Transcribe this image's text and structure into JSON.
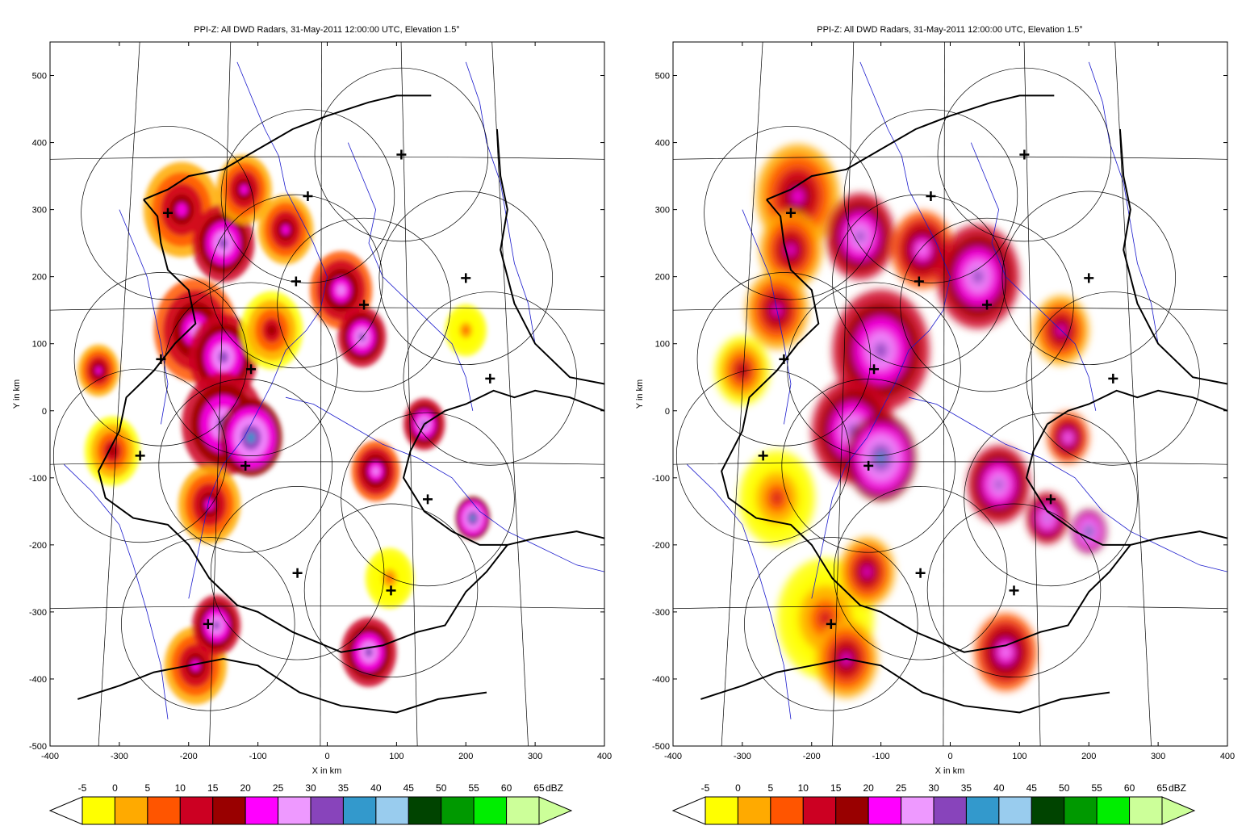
{
  "chart_data": [
    {
      "type": "heatmap",
      "title": "PPI-Z: All DWD Radars, 31-May-2011 12:00:00 UTC, Elevation 1.5°",
      "xlabel": "X in km",
      "ylabel": "Y in km",
      "xlim": [
        -400,
        400
      ],
      "ylim": [
        -500,
        550
      ],
      "xticks": [
        -400,
        -300,
        -200,
        -100,
        0,
        100,
        200,
        300,
        400
      ],
      "yticks": [
        -500,
        -400,
        -300,
        -200,
        -100,
        0,
        100,
        200,
        300,
        400,
        500
      ],
      "xtick_labels": [
        "-400",
        "-300",
        "-200",
        "-100",
        "0",
        "100",
        "200",
        "300",
        "400"
      ],
      "ytick_labels": [
        "-500",
        "-400",
        "-300",
        "-200",
        "-100",
        "0",
        "100",
        "200",
        "300",
        "400",
        "500"
      ],
      "radar_range_km": 125,
      "radar_sites": [
        {
          "x": -230,
          "y": 295
        },
        {
          "x": -28,
          "y": 320
        },
        {
          "x": 107,
          "y": 382
        },
        {
          "x": -45,
          "y": 193
        },
        {
          "x": 53,
          "y": 158
        },
        {
          "x": 200,
          "y": 198
        },
        {
          "x": -240,
          "y": 77
        },
        {
          "x": -110,
          "y": 62
        },
        {
          "x": 235,
          "y": 48
        },
        {
          "x": -270,
          "y": -67
        },
        {
          "x": -118,
          "y": -82
        },
        {
          "x": 145,
          "y": -132
        },
        {
          "x": -43,
          "y": -242
        },
        {
          "x": 92,
          "y": -268
        },
        {
          "x": -172,
          "y": -318
        }
      ],
      "colorbar": {
        "unit": "dBZ",
        "tick_labels": [
          "-5",
          "0",
          "5",
          "10",
          "15",
          "20",
          "25",
          "30",
          "35",
          "40",
          "45",
          "50",
          "55",
          "60",
          "65"
        ],
        "colors": [
          "#ffff00",
          "#ffaa00",
          "#ff5500",
          "#cc0022",
          "#990000",
          "#ff00ff",
          "#ee99ff",
          "#8844bb",
          "#3399cc",
          "#99ccee",
          "#004400",
          "#009900",
          "#00ee00",
          "#ccff99"
        ]
      },
      "rain_cells": [
        {
          "x": -210,
          "y": 300,
          "r": 55,
          "dbz": 15
        },
        {
          "x": -150,
          "y": 250,
          "r": 45,
          "dbz": 25
        },
        {
          "x": -120,
          "y": 330,
          "r": 40,
          "dbz": 15
        },
        {
          "x": -60,
          "y": 270,
          "r": 40,
          "dbz": 15
        },
        {
          "x": -190,
          "y": 120,
          "r": 60,
          "dbz": 20
        },
        {
          "x": -150,
          "y": 80,
          "r": 50,
          "dbz": 25
        },
        {
          "x": -80,
          "y": 120,
          "r": 45,
          "dbz": 10
        },
        {
          "x": 20,
          "y": 180,
          "r": 45,
          "dbz": 20
        },
        {
          "x": 50,
          "y": 110,
          "r": 35,
          "dbz": 25
        },
        {
          "x": -150,
          "y": -20,
          "r": 60,
          "dbz": 25
        },
        {
          "x": -110,
          "y": -40,
          "r": 45,
          "dbz": 30
        },
        {
          "x": -330,
          "y": 60,
          "r": 30,
          "dbz": 15
        },
        {
          "x": -310,
          "y": -60,
          "r": 40,
          "dbz": 10
        },
        {
          "x": -170,
          "y": -140,
          "r": 45,
          "dbz": 15
        },
        {
          "x": -190,
          "y": -380,
          "r": 45,
          "dbz": 15
        },
        {
          "x": -160,
          "y": -320,
          "r": 35,
          "dbz": 25
        },
        {
          "x": 70,
          "y": -90,
          "r": 35,
          "dbz": 20
        },
        {
          "x": 140,
          "y": -20,
          "r": 30,
          "dbz": 25
        },
        {
          "x": 200,
          "y": 120,
          "r": 30,
          "dbz": 0
        },
        {
          "x": 60,
          "y": -360,
          "r": 40,
          "dbz": 25
        },
        {
          "x": 90,
          "y": -250,
          "r": 35,
          "dbz": 0
        },
        {
          "x": 210,
          "y": -160,
          "r": 25,
          "dbz": 30
        }
      ]
    },
    {
      "type": "heatmap",
      "title": "PPI-Z: All DWD Radars, 31-May-2011 12:00:00 UTC, Elevation 1.5°",
      "xlabel": "X in km",
      "ylabel": "Y in km",
      "xlim": [
        -400,
        400
      ],
      "ylim": [
        -500,
        550
      ],
      "xticks": [
        -400,
        -300,
        -200,
        -100,
        0,
        100,
        200,
        300,
        400
      ],
      "yticks": [
        -500,
        -400,
        -300,
        -200,
        -100,
        0,
        100,
        200,
        300,
        400,
        500
      ],
      "xtick_labels": [
        "-400",
        "-300",
        "-200",
        "-100",
        "0",
        "100",
        "200",
        "300",
        "400"
      ],
      "ytick_labels": [
        "-500",
        "-400",
        "-300",
        "-200",
        "-100",
        "0",
        "100",
        "200",
        "300",
        "400",
        "500"
      ],
      "radar_range_km": 125,
      "radar_sites": [
        {
          "x": -230,
          "y": 295
        },
        {
          "x": -28,
          "y": 320
        },
        {
          "x": 107,
          "y": 382
        },
        {
          "x": -45,
          "y": 193
        },
        {
          "x": 53,
          "y": 158
        },
        {
          "x": 200,
          "y": 198
        },
        {
          "x": -240,
          "y": 77
        },
        {
          "x": -110,
          "y": 62
        },
        {
          "x": 235,
          "y": 48
        },
        {
          "x": -270,
          "y": -67
        },
        {
          "x": -118,
          "y": -82
        },
        {
          "x": 145,
          "y": -132
        },
        {
          "x": -43,
          "y": -242
        },
        {
          "x": 92,
          "y": -268
        },
        {
          "x": -172,
          "y": -318
        }
      ],
      "colorbar": {
        "unit": "dBZ",
        "tick_labels": [
          "-5",
          "0",
          "5",
          "10",
          "15",
          "20",
          "25",
          "30",
          "35",
          "40",
          "45",
          "50",
          "55",
          "60",
          "65"
        ],
        "colors": [
          "#ffff00",
          "#ffaa00",
          "#ff5500",
          "#cc0022",
          "#990000",
          "#ff00ff",
          "#ee99ff",
          "#8844bb",
          "#3399cc",
          "#99ccee",
          "#004400",
          "#009900",
          "#00ee00",
          "#ccff99"
        ]
      },
      "rain_cells": [
        {
          "x": -220,
          "y": 320,
          "r": 60,
          "dbz": 15
        },
        {
          "x": -230,
          "y": 240,
          "r": 45,
          "dbz": 15
        },
        {
          "x": -130,
          "y": 260,
          "r": 50,
          "dbz": 25
        },
        {
          "x": -40,
          "y": 240,
          "r": 45,
          "dbz": 20
        },
        {
          "x": 40,
          "y": 200,
          "r": 60,
          "dbz": 25
        },
        {
          "x": -100,
          "y": 90,
          "r": 70,
          "dbz": 25
        },
        {
          "x": -140,
          "y": -30,
          "r": 60,
          "dbz": 25
        },
        {
          "x": -100,
          "y": -70,
          "r": 50,
          "dbz": 30
        },
        {
          "x": -250,
          "y": 150,
          "r": 45,
          "dbz": 15
        },
        {
          "x": -300,
          "y": 60,
          "r": 40,
          "dbz": 10
        },
        {
          "x": -250,
          "y": -130,
          "r": 55,
          "dbz": 5
        },
        {
          "x": -180,
          "y": -310,
          "r": 70,
          "dbz": 5
        },
        {
          "x": -120,
          "y": -240,
          "r": 40,
          "dbz": 15
        },
        {
          "x": -150,
          "y": -370,
          "r": 45,
          "dbz": 15
        },
        {
          "x": 70,
          "y": -110,
          "r": 45,
          "dbz": 25
        },
        {
          "x": 140,
          "y": -160,
          "r": 30,
          "dbz": 25
        },
        {
          "x": 80,
          "y": -360,
          "r": 45,
          "dbz": 20
        },
        {
          "x": 200,
          "y": -180,
          "r": 25,
          "dbz": 30
        },
        {
          "x": 160,
          "y": 120,
          "r": 40,
          "dbz": 15
        },
        {
          "x": 170,
          "y": -40,
          "r": 30,
          "dbz": 20
        }
      ]
    }
  ]
}
